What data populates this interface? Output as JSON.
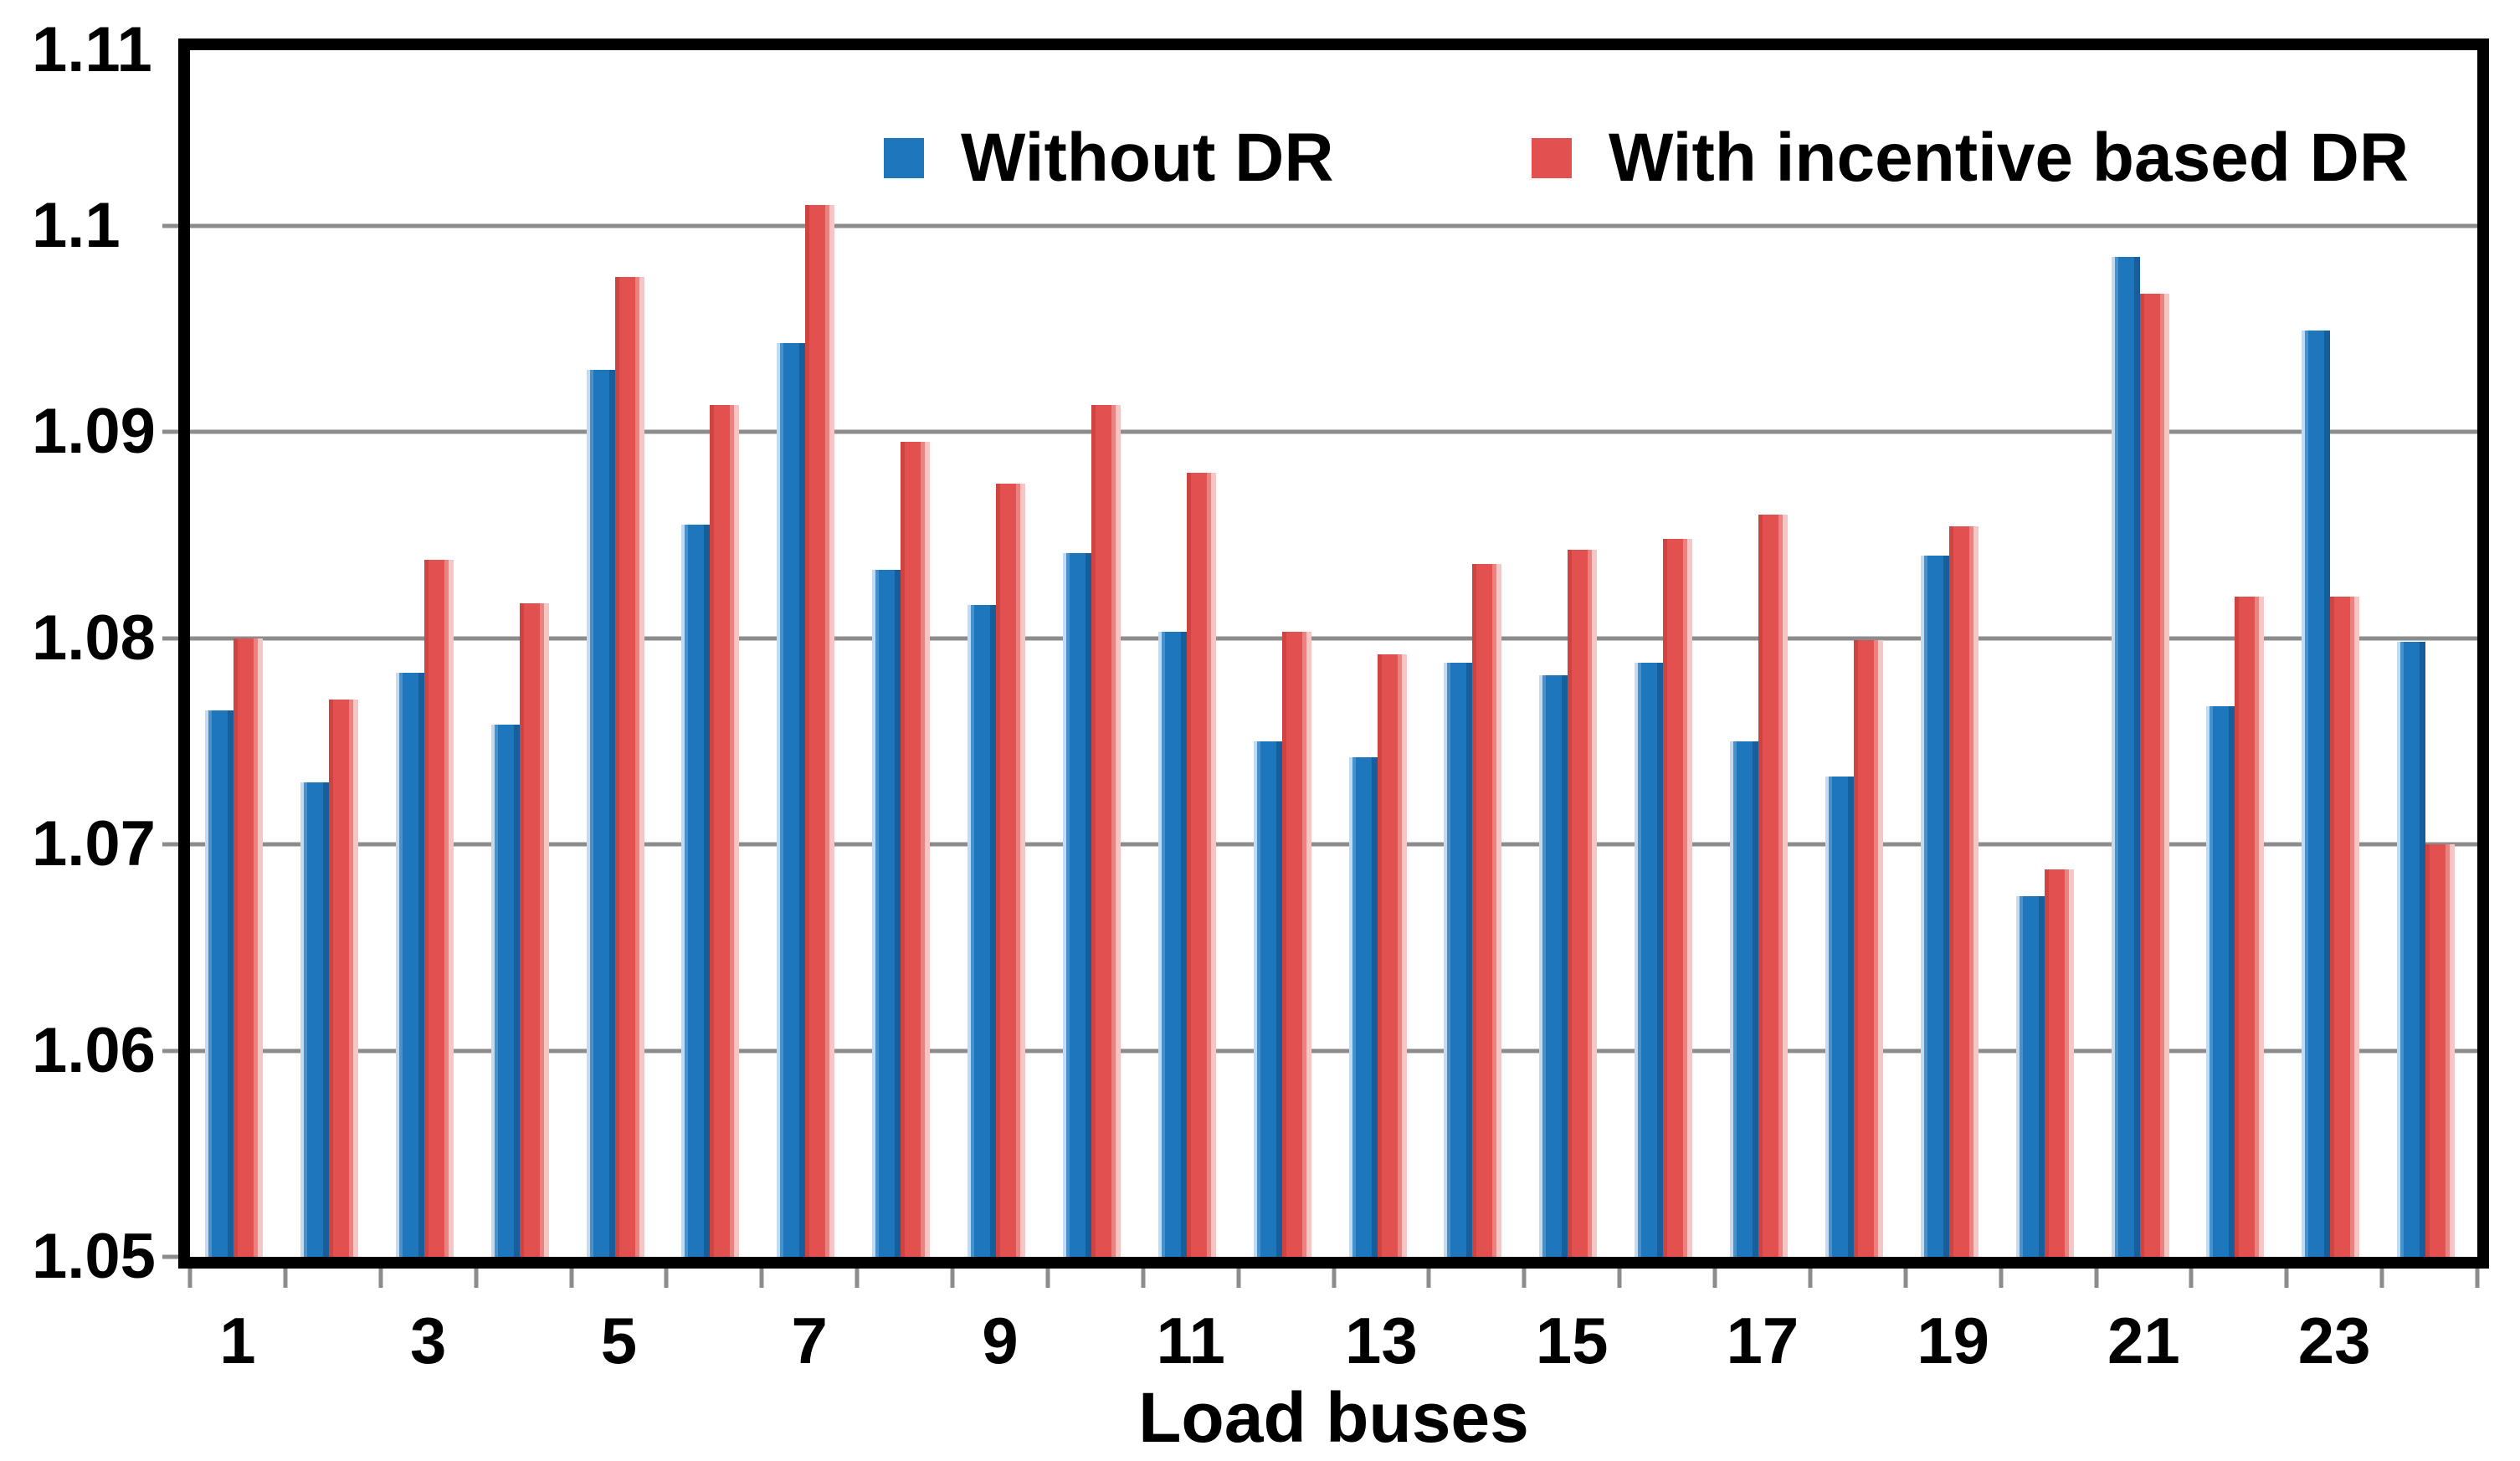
{
  "chart_data": {
    "type": "bar",
    "title": "",
    "xlabel": "Load buses",
    "ylabel": "",
    "categories": [
      1,
      2,
      3,
      4,
      5,
      6,
      7,
      8,
      9,
      10,
      11,
      12,
      13,
      14,
      15,
      16,
      17,
      18,
      19,
      20,
      21,
      22,
      23,
      24
    ],
    "series": [
      {
        "name": "Without DR",
        "color": "#1e76bd",
        "values": [
          1.0765,
          1.073,
          1.0783,
          1.0758,
          1.093,
          1.0855,
          1.0943,
          1.0833,
          1.0816,
          1.0841,
          1.0803,
          1.075,
          1.0742,
          1.0788,
          1.0782,
          1.0788,
          1.075,
          1.0733,
          1.084,
          1.0675,
          1.0985,
          1.0767,
          1.0949,
          1.0798
        ]
      },
      {
        "name": "With incentive based DR",
        "color": "#e25150",
        "values": [
          1.08,
          1.077,
          1.0838,
          1.0817,
          1.0975,
          1.0913,
          1.101,
          1.0895,
          1.0875,
          1.0913,
          1.088,
          1.0803,
          1.0792,
          1.0836,
          1.0843,
          1.0848,
          1.086,
          1.0799,
          1.0854,
          1.0688,
          1.0967,
          1.082,
          1.082,
          1.07
        ]
      }
    ],
    "ylim": [
      1.05,
      1.1085
    ],
    "grid_values": [
      1.06,
      1.07,
      1.08,
      1.09,
      1.1
    ],
    "yticks": [
      {
        "label": "1.11",
        "value": 1.1085
      },
      {
        "label": "1.1",
        "value": 1.1
      },
      {
        "label": "1.09",
        "value": 1.09
      },
      {
        "label": "1.08",
        "value": 1.08
      },
      {
        "label": "1.07",
        "value": 1.07
      },
      {
        "label": "1.06",
        "value": 1.06
      },
      {
        "label": "1.05",
        "value": 1.05
      }
    ],
    "xtick_label_positions": [
      1,
      3,
      5,
      7,
      9,
      11,
      13,
      15,
      17,
      19,
      21,
      23
    ],
    "grid": true,
    "legend_position": "top-inside",
    "colors": {
      "gridline": "#8c8c8c",
      "tick": "#8c8c8c",
      "axis_border": "#000000",
      "text": "#000000",
      "background": "#ffffff"
    }
  }
}
